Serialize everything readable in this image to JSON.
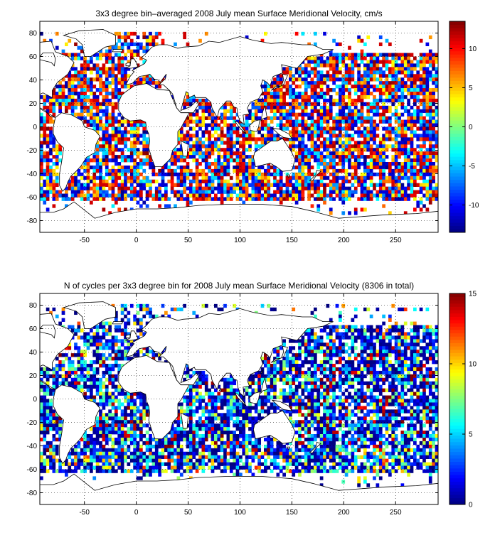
{
  "chart_data": [
    {
      "type": "heatmap",
      "title": "3x3 degree bin–averaged 2008 July mean Surface Meridional Velocity, cm/s",
      "xlim": [
        -93,
        291
      ],
      "ylim": [
        -90,
        90
      ],
      "xticks": [
        -50,
        0,
        50,
        100,
        150,
        200,
        250
      ],
      "yticks": [
        -80,
        -60,
        -40,
        -20,
        0,
        20,
        40,
        60,
        80
      ],
      "grid": "dotted",
      "colormap": "jet",
      "clim": [
        -13.5,
        13.5
      ],
      "colorbar_ticks": [
        -10,
        -5,
        0,
        5,
        10
      ],
      "bin_size_deg": 3,
      "cells_note": "dense scatter of ocean bins with values spanning full colormap"
    },
    {
      "type": "heatmap",
      "title": "N of cycles per 3x3 degree bin for 2008 July mean Surface Meridional Velocity (8306 in total)",
      "xlim": [
        -93,
        291
      ],
      "ylim": [
        -90,
        90
      ],
      "xticks": [
        -50,
        0,
        50,
        100,
        150,
        200,
        250
      ],
      "yticks": [
        -80,
        -60,
        -40,
        -20,
        0,
        20,
        40,
        60,
        80
      ],
      "grid": "dotted",
      "colormap": "jet",
      "clim": [
        0,
        15
      ],
      "colorbar_ticks": [
        0,
        5,
        10,
        15
      ],
      "bin_size_deg": 3,
      "total_count": 8306
    }
  ]
}
